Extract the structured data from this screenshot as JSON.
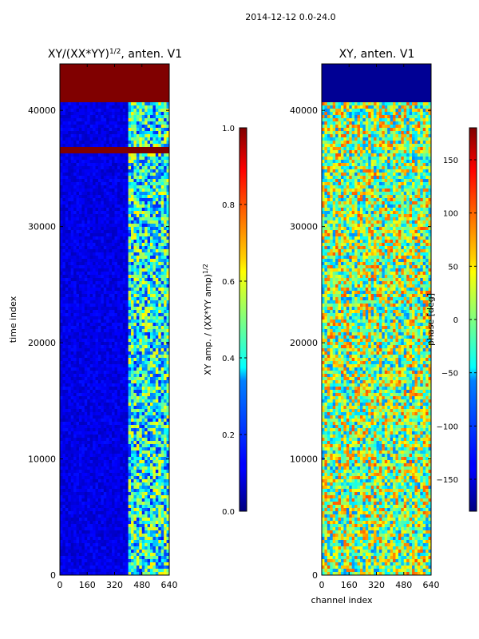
{
  "suptitle": "2014-12-12 0.0-24.0",
  "chart_data": [
    {
      "type": "heatmap",
      "title_main": "XY/(XX*YY)",
      "title_sup": "1/2",
      "title_rest": ", anten. V1",
      "xlabel": "",
      "ylabel": "time index",
      "xlim": [
        0,
        640
      ],
      "ylim": [
        0,
        44000
      ],
      "xticks": [
        "0",
        "160",
        "320",
        "480",
        "640"
      ],
      "xtick_values": [
        0,
        160,
        320,
        480,
        640
      ],
      "yticks": [
        "0",
        "10000",
        "20000",
        "30000",
        "40000"
      ],
      "ytick_values": [
        0,
        10000,
        20000,
        30000,
        40000
      ],
      "colormap": "jet",
      "colorbar": {
        "label_main": "XY amp. / (XX*YY amp)",
        "label_sup": "1/2",
        "vmin": 0,
        "vmax": 1,
        "ticks": [
          "0.0",
          "0.2",
          "0.4",
          "0.6",
          "0.8",
          "1.0"
        ],
        "tick_values": [
          0,
          0.2,
          0.4,
          0.6,
          0.8,
          1.0
        ]
      },
      "saturated_time_ranges": [
        [
          40800,
          44000
        ],
        [
          36200,
          36800
        ]
      ],
      "bright_channel_range": [
        400,
        640
      ],
      "typical_value": 0.1
    },
    {
      "type": "heatmap",
      "title_main": "XY, anten. V1",
      "xlabel": "channel index",
      "ylabel": "",
      "xlim": [
        0,
        640
      ],
      "ylim": [
        0,
        44000
      ],
      "xticks": [
        "0",
        "160",
        "320",
        "480",
        "640"
      ],
      "xtick_values": [
        0,
        160,
        320,
        480,
        640
      ],
      "yticks": [
        "0",
        "10000",
        "20000",
        "30000",
        "40000"
      ],
      "ytick_values": [
        0,
        10000,
        20000,
        30000,
        40000
      ],
      "colormap": "jet",
      "colorbar": {
        "label_main": "phase [deg]",
        "vmin": -180,
        "vmax": 180,
        "ticks": [
          "−150",
          "−100",
          "−50",
          "0",
          "50",
          "100",
          "150"
        ],
        "tick_values": [
          -150,
          -100,
          -50,
          0,
          50,
          100,
          150
        ]
      },
      "masked_time_ranges": [
        [
          40800,
          44000
        ]
      ],
      "typical_value": 0
    }
  ],
  "colors": {
    "jet_low": "#00007f",
    "jet_high": "#7f0000",
    "axes": "#000000"
  }
}
